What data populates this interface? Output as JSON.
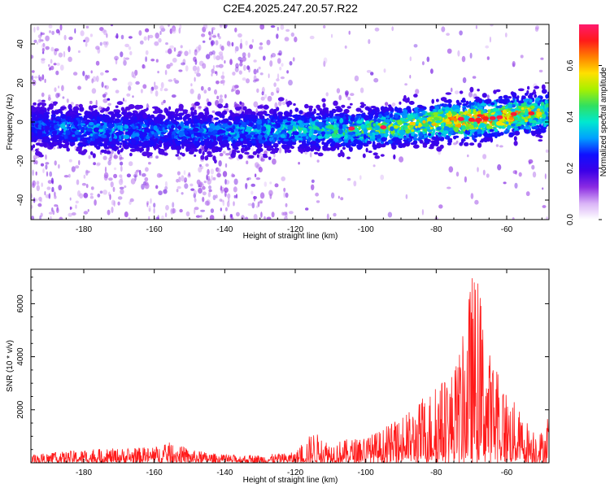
{
  "title": "C2E4.2025.247.20.57.R22",
  "chart_data": [
    {
      "type": "heatmap",
      "xlabel": "Height of straight line (km)",
      "ylabel": "Frequency (Hz)",
      "xlim": [
        -195,
        -48
      ],
      "ylim": [
        -50,
        50
      ],
      "xticks": [
        -180,
        -160,
        -140,
        -120,
        -100,
        -80,
        -60
      ],
      "yticks": [
        -40,
        -20,
        0,
        20,
        40
      ],
      "colorbar": {
        "label": "Normalized spectral amplitude",
        "range": [
          0,
          0.76
        ],
        "ticks": [
          "0.0",
          "0.2",
          "0.4",
          "0.6"
        ],
        "tick_values": [
          0.0,
          0.2,
          0.4,
          0.6
        ],
        "colormap": [
          "#ffffff",
          "#d9b3f7",
          "#8b2be2",
          "#3b00e8",
          "#1010ff",
          "#00a0ff",
          "#00e8d0",
          "#30e060",
          "#a8f000",
          "#ffe000",
          "#ff8000",
          "#ff1a1a",
          "#ff1a6e"
        ]
      },
      "ridge": {
        "x": [
          -195,
          -180,
          -160,
          -140,
          -120,
          -100,
          -80,
          -70,
          -60,
          -50
        ],
        "frequency": [
          -2,
          -4,
          -5,
          -5,
          -4,
          -4,
          0,
          1,
          3,
          5
        ],
        "amplitude": [
          0.15,
          0.25,
          0.2,
          0.22,
          0.3,
          0.4,
          0.55,
          0.7,
          0.65,
          0.5
        ]
      }
    },
    {
      "type": "line",
      "xlabel": "Height of straight line (km)",
      "ylabel": "SNR (10 * v/v)",
      "xlim": [
        -195,
        -48
      ],
      "ylim": [
        0,
        7300
      ],
      "xticks": [
        -180,
        -160,
        -140,
        -120,
        -100,
        -80,
        -60
      ],
      "yticks": [
        2000,
        4000,
        6000
      ],
      "series": [
        {
          "name": "SNR",
          "color": "#ff1a1a",
          "envelope_x": [
            -195,
            -180,
            -170,
            -160,
            -155,
            -150,
            -140,
            -130,
            -120,
            -115,
            -110,
            -100,
            -95,
            -90,
            -85,
            -80,
            -75,
            -72,
            -70,
            -68,
            -65,
            -60,
            -55,
            -50,
            -48
          ],
          "envelope_y": [
            300,
            500,
            550,
            600,
            800,
            500,
            300,
            300,
            400,
            1200,
            800,
            1000,
            1300,
            1700,
            2300,
            3000,
            3600,
            5000,
            7300,
            6800,
            4300,
            2800,
            1700,
            1200,
            1800
          ]
        }
      ]
    }
  ]
}
